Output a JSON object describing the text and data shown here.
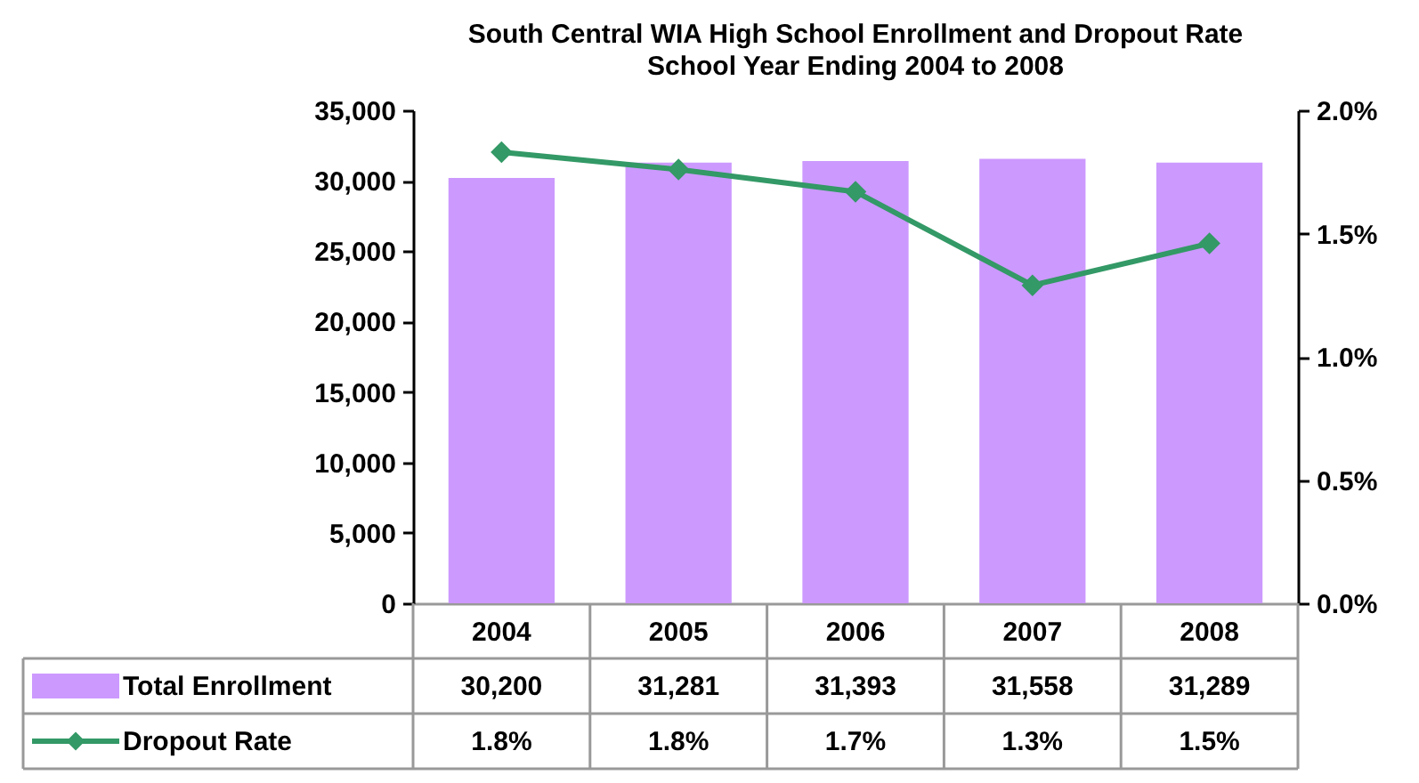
{
  "chart_data": {
    "type": "bar",
    "title": "South Central WIA High School Enrollment and Dropout Rate",
    "subtitle": "School Year Ending 2004 to 2008",
    "categories": [
      "2004",
      "2005",
      "2006",
      "2007",
      "2008"
    ],
    "series": [
      {
        "name": "Total Enrollment",
        "color": "#cc99ff",
        "values": [
          30200,
          31281,
          31393,
          31558,
          31289
        ],
        "value_labels": [
          "30,200",
          "31,281",
          "31,393",
          "31,558",
          "31,289"
        ]
      },
      {
        "name": "Dropout Rate",
        "type": "line",
        "axis": "y2",
        "color": "#339966",
        "values": [
          1.83,
          1.76,
          1.67,
          1.29,
          1.46
        ],
        "value_labels": [
          "1.8%",
          "1.8%",
          "1.7%",
          "1.3%",
          "1.5%"
        ]
      }
    ],
    "ylim": [
      0,
      35000
    ],
    "yticks": [
      0,
      {
        "value": 5000,
        "label": "5,000"
      },
      {
        "value": 10000,
        "label": "10,000"
      },
      {
        "value": 15000,
        "label": "15,000"
      },
      {
        "value": 20000,
        "label": "20,000"
      },
      {
        "value": 25000,
        "label": "25,000"
      },
      {
        "value": 30000,
        "label": "30,000"
      },
      {
        "value": 35000,
        "label": "35,000"
      }
    ],
    "y2lim": [
      0,
      2.0
    ],
    "y2ticks": [
      {
        "value": 0,
        "label": "0.0%"
      },
      {
        "value": 0.5,
        "label": "0.5%"
      },
      {
        "value": 1.0,
        "label": "1.0%"
      },
      {
        "value": 1.5,
        "label": "1.5%"
      },
      {
        "value": 2.0,
        "label": "2.0%"
      }
    ],
    "grid": false,
    "legend": "bottom",
    "marker": "diamond"
  }
}
